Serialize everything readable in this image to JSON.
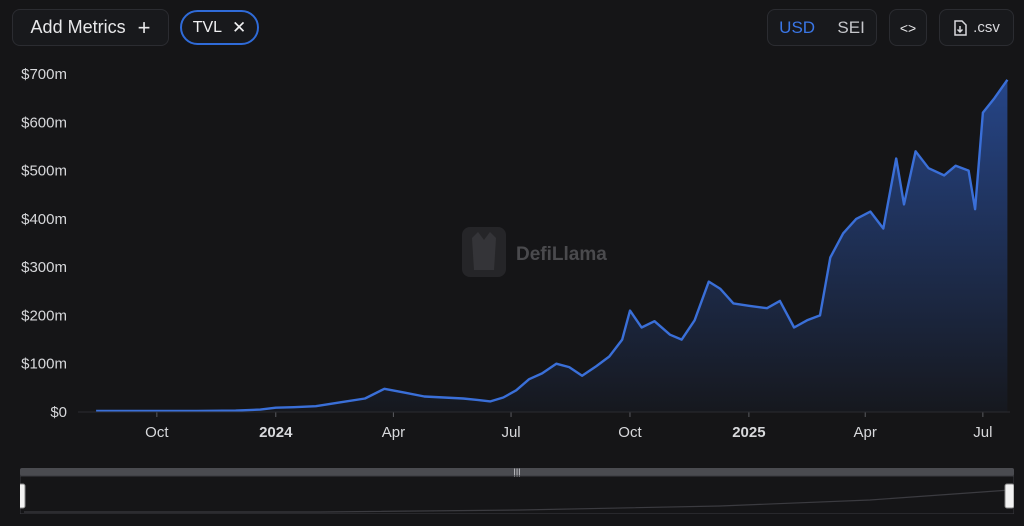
{
  "toolbar": {
    "add_metrics_label": "Add Metrics",
    "add_icon": "plus-icon",
    "metric_chip_label": "TVL",
    "remove_icon": "close-icon",
    "currency_usd": "USD",
    "currency_sei": "SEI",
    "embed_icon": "code-icon",
    "csv_label": ".csv",
    "csv_icon": "download-file-icon"
  },
  "watermark": "DefiLlama",
  "colors": {
    "line": "#3a6fd8",
    "accent": "#2f6bd8",
    "background": "#151517"
  },
  "chart_data": {
    "type": "area",
    "series": [
      {
        "name": "TVL",
        "points": [
          [
            "2023-08-15",
            2
          ],
          [
            "2023-09-01",
            2
          ],
          [
            "2023-10-01",
            2
          ],
          [
            "2023-11-01",
            2
          ],
          [
            "2023-12-01",
            3
          ],
          [
            "2023-12-20",
            5
          ],
          [
            "2024-01-01",
            9
          ],
          [
            "2024-01-15",
            10
          ],
          [
            "2024-02-01",
            12
          ],
          [
            "2024-02-20",
            20
          ],
          [
            "2024-03-10",
            28
          ],
          [
            "2024-03-25",
            48
          ],
          [
            "2024-04-10",
            40
          ],
          [
            "2024-04-25",
            32
          ],
          [
            "2024-05-10",
            30
          ],
          [
            "2024-05-25",
            28
          ],
          [
            "2024-06-05",
            25
          ],
          [
            "2024-06-15",
            22
          ],
          [
            "2024-06-25",
            30
          ],
          [
            "2024-07-05",
            45
          ],
          [
            "2024-07-15",
            68
          ],
          [
            "2024-07-25",
            80
          ],
          [
            "2024-08-05",
            100
          ],
          [
            "2024-08-15",
            93
          ],
          [
            "2024-08-25",
            75
          ],
          [
            "2024-09-05",
            95
          ],
          [
            "2024-09-15",
            115
          ],
          [
            "2024-09-25",
            150
          ],
          [
            "2024-10-01",
            210
          ],
          [
            "2024-10-10",
            175
          ],
          [
            "2024-10-20",
            188
          ],
          [
            "2024-11-01",
            160
          ],
          [
            "2024-11-10",
            150
          ],
          [
            "2024-11-20",
            190
          ],
          [
            "2024-12-01",
            270
          ],
          [
            "2024-12-10",
            255
          ],
          [
            "2024-12-20",
            225
          ],
          [
            "2025-01-01",
            220
          ],
          [
            "2025-01-15",
            215
          ],
          [
            "2025-01-25",
            230
          ],
          [
            "2025-02-05",
            175
          ],
          [
            "2025-02-15",
            190
          ],
          [
            "2025-02-25",
            200
          ],
          [
            "2025-03-05",
            320
          ],
          [
            "2025-03-15",
            370
          ],
          [
            "2025-03-25",
            400
          ],
          [
            "2025-04-05",
            415
          ],
          [
            "2025-04-15",
            380
          ],
          [
            "2025-04-25",
            525
          ],
          [
            "2025-05-01",
            430
          ],
          [
            "2025-05-10",
            540
          ],
          [
            "2025-05-20",
            505
          ],
          [
            "2025-06-01",
            490
          ],
          [
            "2025-06-10",
            510
          ],
          [
            "2025-06-20",
            500
          ],
          [
            "2025-06-25",
            420
          ],
          [
            "2025-07-01",
            620
          ],
          [
            "2025-07-10",
            650
          ],
          [
            "2025-07-20",
            688
          ]
        ]
      }
    ],
    "y_ticks": [
      "$700m",
      "$600m",
      "$500m",
      "$400m",
      "$300m",
      "$200m",
      "$100m",
      "$0"
    ],
    "x_ticks": [
      "Oct",
      "2024",
      "Apr",
      "Jul",
      "Oct",
      "2025",
      "Apr",
      "Jul"
    ],
    "x_tick_bold": [
      false,
      true,
      false,
      false,
      false,
      true,
      false,
      false
    ],
    "ylim": [
      0,
      700
    ],
    "x_tick_dates": [
      "2023-10-01",
      "2024-01-01",
      "2024-04-01",
      "2024-07-01",
      "2024-10-01",
      "2025-01-01",
      "2025-04-01",
      "2025-07-01"
    ],
    "xlim": [
      "2023-08-01",
      "2025-07-22"
    ],
    "grid": false,
    "legend": "none"
  }
}
